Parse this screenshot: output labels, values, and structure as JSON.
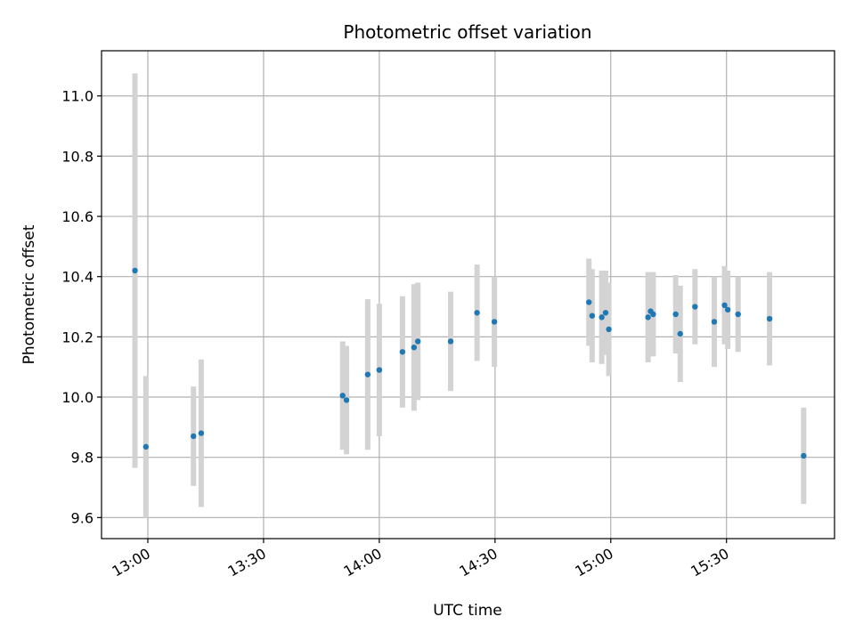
{
  "chart_data": {
    "type": "scatter",
    "title": "Photometric offset variation",
    "xlabel": "UTC time",
    "ylabel": "Photometric offset",
    "x_ticks": [
      "13:00",
      "13:30",
      "14:00",
      "14:30",
      "15:00",
      "15:30"
    ],
    "y_ticks": [
      "9.6",
      "9.8",
      "10.0",
      "10.2",
      "10.4",
      "10.6",
      "10.8",
      "11.0"
    ],
    "xlim": [
      "12:48",
      "15:58"
    ],
    "ylim": [
      9.53,
      11.15
    ],
    "grid": true,
    "marker_color": "#1f77b4",
    "errorbar_color": "#d3d3d3",
    "series": [
      {
        "points": [
          {
            "x": "12:56:40",
            "y": 10.42,
            "yerr": 0.655
          },
          {
            "x": "12:59:30",
            "y": 9.835,
            "yerr": 0.235
          },
          {
            "x": "13:11:50",
            "y": 9.87,
            "yerr": 0.165
          },
          {
            "x": "13:13:50",
            "y": 9.88,
            "yerr": 0.245
          },
          {
            "x": "13:50:30",
            "y": 10.005,
            "yerr": 0.18
          },
          {
            "x": "13:51:30",
            "y": 9.99,
            "yerr": 0.18
          },
          {
            "x": "13:57:00",
            "y": 10.075,
            "yerr": 0.25
          },
          {
            "x": "14:00:00",
            "y": 10.09,
            "yerr": 0.22
          },
          {
            "x": "14:06:00",
            "y": 10.15,
            "yerr": 0.185
          },
          {
            "x": "14:09:00",
            "y": 10.165,
            "yerr": 0.21
          },
          {
            "x": "14:10:00",
            "y": 10.185,
            "yerr": 0.195
          },
          {
            "x": "14:18:30",
            "y": 10.185,
            "yerr": 0.165
          },
          {
            "x": "14:25:20",
            "y": 10.28,
            "yerr": 0.16
          },
          {
            "x": "14:29:50",
            "y": 10.25,
            "yerr": 0.15
          },
          {
            "x": "14:54:20",
            "y": 10.315,
            "yerr": 0.145
          },
          {
            "x": "14:55:10",
            "y": 10.27,
            "yerr": 0.155
          },
          {
            "x": "14:57:40",
            "y": 10.265,
            "yerr": 0.155
          },
          {
            "x": "14:58:40",
            "y": 10.28,
            "yerr": 0.14
          },
          {
            "x": "14:59:30",
            "y": 10.225,
            "yerr": 0.155
          },
          {
            "x": "15:09:40",
            "y": 10.265,
            "yerr": 0.15
          },
          {
            "x": "15:10:20",
            "y": 10.285,
            "yerr": 0.13
          },
          {
            "x": "15:11:00",
            "y": 10.275,
            "yerr": 0.14
          },
          {
            "x": "15:16:50",
            "y": 10.275,
            "yerr": 0.13
          },
          {
            "x": "15:18:00",
            "y": 10.21,
            "yerr": 0.16
          },
          {
            "x": "15:21:50",
            "y": 10.3,
            "yerr": 0.125
          },
          {
            "x": "15:26:50",
            "y": 10.25,
            "yerr": 0.15
          },
          {
            "x": "15:29:30",
            "y": 10.305,
            "yerr": 0.13
          },
          {
            "x": "15:30:20",
            "y": 10.29,
            "yerr": 0.13
          },
          {
            "x": "15:33:00",
            "y": 10.275,
            "yerr": 0.125
          },
          {
            "x": "15:41:10",
            "y": 10.26,
            "yerr": 0.155
          },
          {
            "x": "15:50:00",
            "y": 9.805,
            "yerr": 0.16
          }
        ]
      }
    ]
  }
}
